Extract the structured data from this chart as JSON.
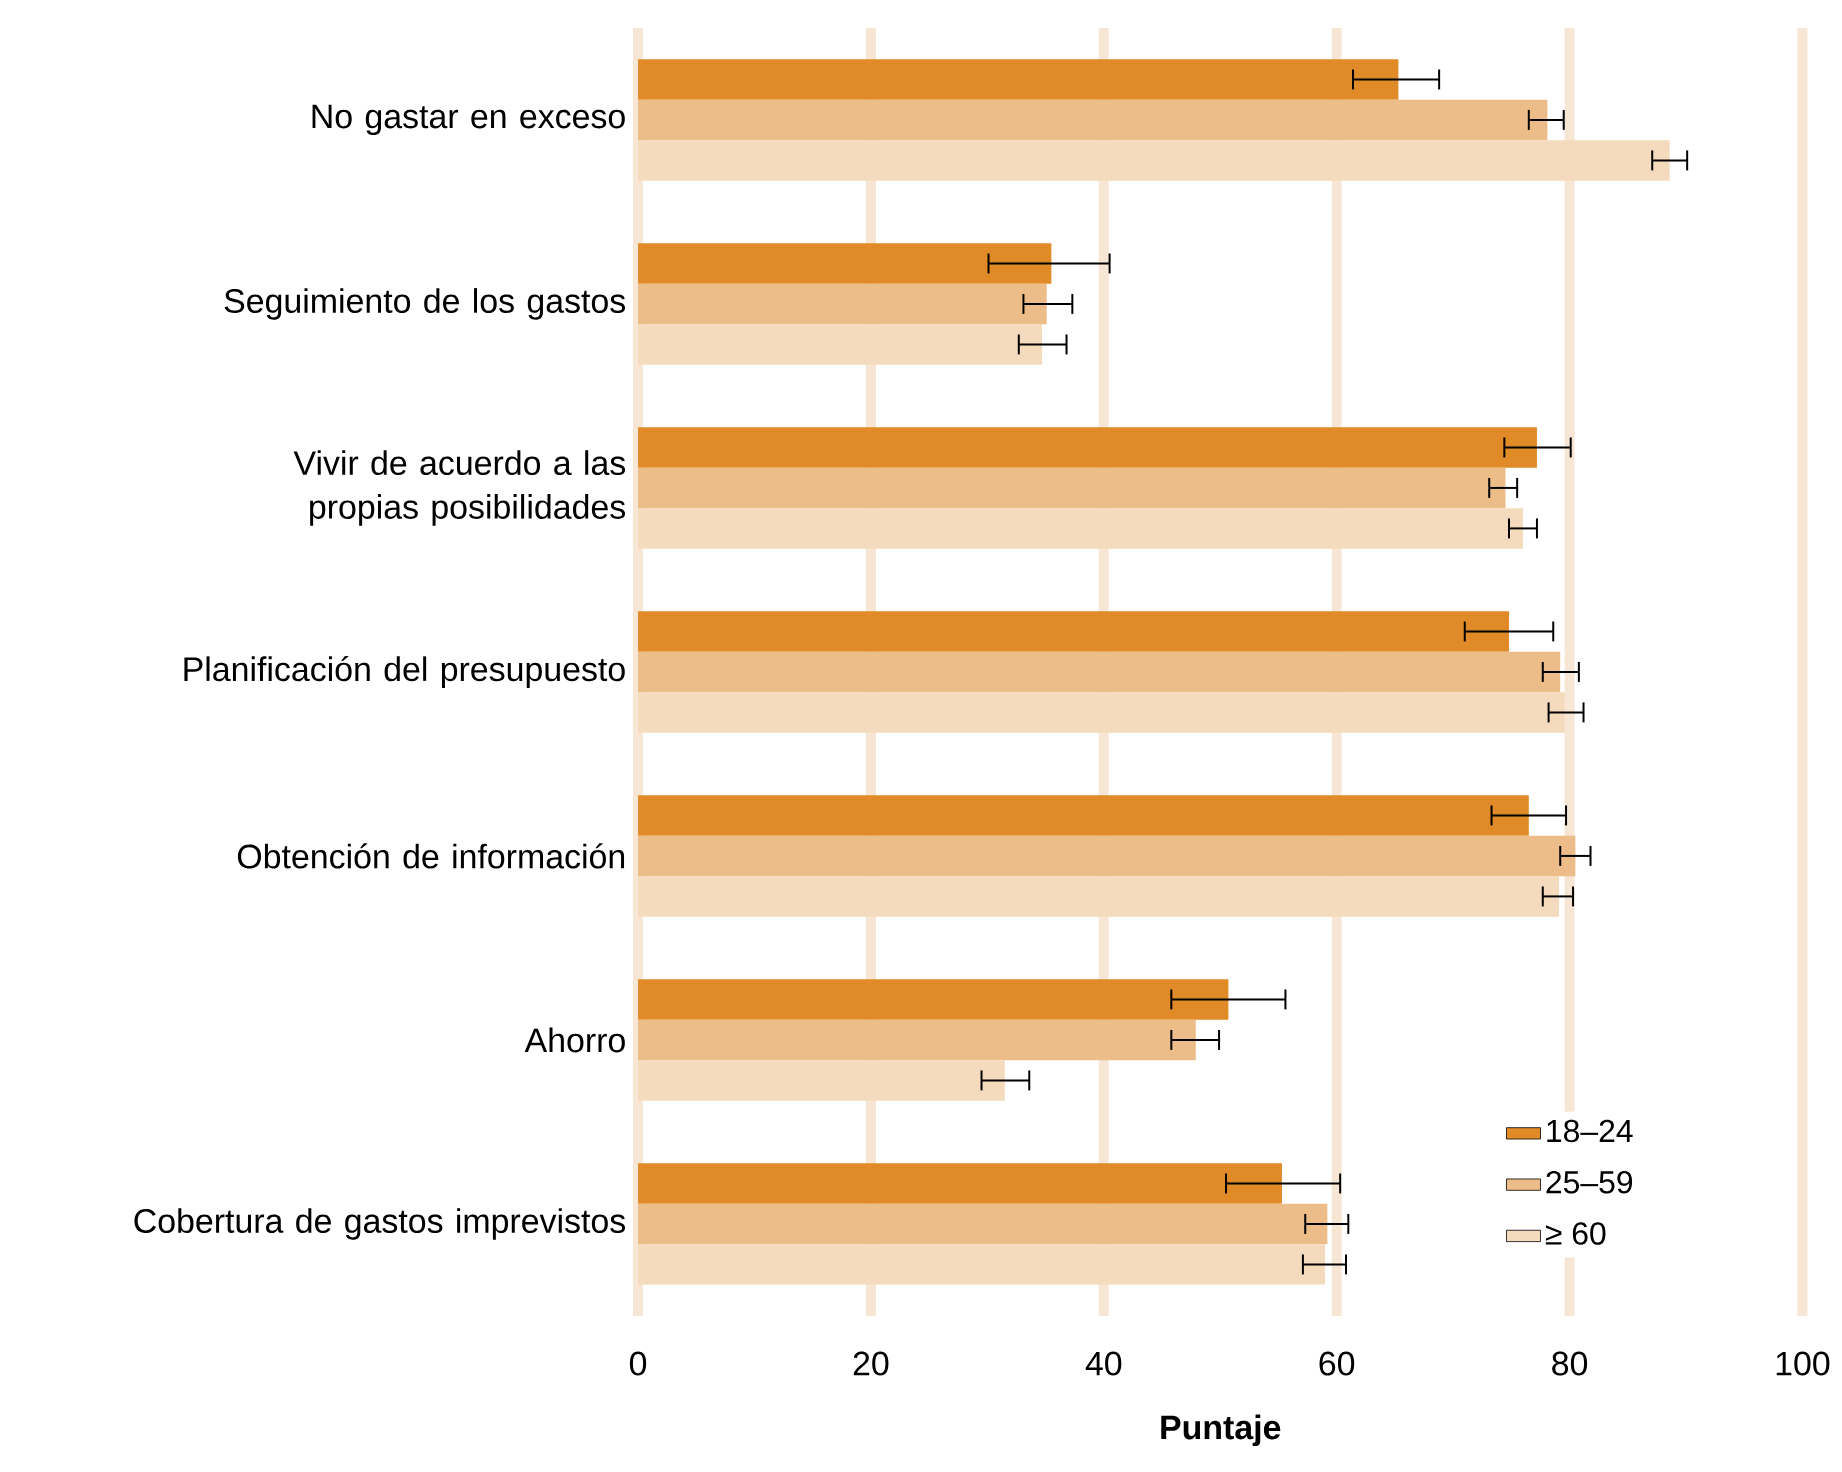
{
  "chart_data": {
    "type": "bar",
    "orientation": "horizontal",
    "xlabel": "Puntaje",
    "categories": [
      "No gastar en exceso",
      "Seguimiento de los gastos",
      "Vivir de acuerdo a las propias posibilidades",
      "Planificación del presupuesto",
      "Obtención de información",
      "Ahorro",
      "Cobertura de gastos imprevistos"
    ],
    "series": [
      {
        "name": "18–24",
        "color": "#e08a28",
        "values": [
          65.3,
          35.5,
          77.2,
          74.8,
          76.5,
          50.7,
          55.3
        ],
        "errors": [
          [
            61.4,
            68.8
          ],
          [
            30.1,
            40.5
          ],
          [
            74.4,
            80.1
          ],
          [
            71.0,
            78.6
          ],
          [
            73.3,
            79.7
          ],
          [
            45.8,
            55.6
          ],
          [
            50.5,
            60.3
          ]
        ]
      },
      {
        "name": "25–59",
        "color": "#edbd89",
        "values": [
          78.1,
          35.1,
          74.5,
          79.2,
          80.5,
          47.9,
          59.2
        ],
        "errors": [
          [
            76.5,
            79.5
          ],
          [
            33.1,
            37.3
          ],
          [
            73.1,
            75.5
          ],
          [
            77.7,
            80.8
          ],
          [
            79.2,
            81.8
          ],
          [
            45.8,
            49.9
          ],
          [
            57.3,
            61.0
          ]
        ]
      },
      {
        "name": "≥ 60",
        "color": "#f4dbbd",
        "values": [
          88.6,
          34.7,
          76.0,
          79.6,
          79.1,
          31.5,
          59.0
        ],
        "errors": [
          [
            87.1,
            90.1
          ],
          [
            32.7,
            36.8
          ],
          [
            74.8,
            77.2
          ],
          [
            78.2,
            81.2
          ],
          [
            77.7,
            80.3
          ],
          [
            29.5,
            33.6
          ],
          [
            57.1,
            60.8
          ]
        ]
      }
    ],
    "xlim": [
      0,
      100
    ],
    "xticks": [
      0,
      20,
      40,
      60,
      80,
      100
    ],
    "grid": "x",
    "legend": "bottom right"
  }
}
